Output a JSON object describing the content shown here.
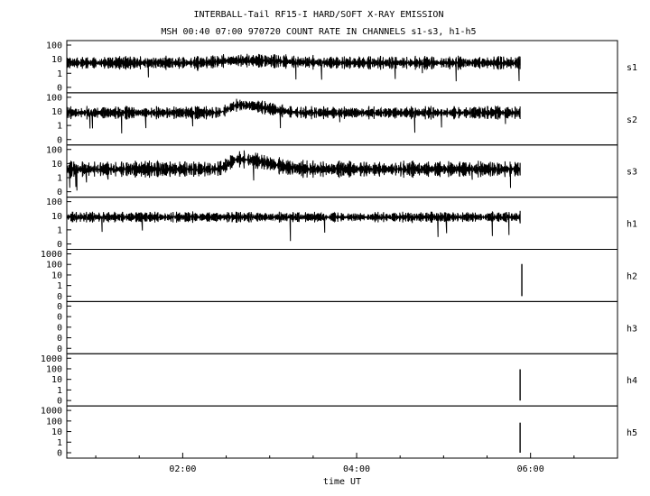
{
  "chart_data": {
    "type": "line",
    "title": "INTERBALL-Tail RF15-I HARD/SOFT X-RAY EMISSION",
    "subtitle": "MSH 00:40 07:00 970720  COUNT RATE IN CHANNELS s1-s3, h1-h5",
    "xlabel": "time UT",
    "x_ticks": [
      "02:00",
      "04:00",
      "06:00"
    ],
    "x_range_hours": [
      0.667,
      7.0
    ],
    "data_end_hour": 5.88,
    "y_scale": "log",
    "panels": [
      {
        "channel": "s1",
        "y_ticks": [
          "100",
          "10",
          "1",
          "0"
        ],
        "baseline": 5.5,
        "noise": 0.12,
        "events": [
          {
            "type": "hump",
            "center_hour": 2.6,
            "width": 0.5,
            "peak": 8
          }
        ]
      },
      {
        "channel": "s2",
        "y_ticks": [
          "100",
          "10",
          "1",
          "0"
        ],
        "baseline": 8,
        "noise": 0.12,
        "events": [
          {
            "type": "hump",
            "center_hour": 2.65,
            "width": 0.25,
            "peak": 28
          }
        ]
      },
      {
        "channel": "s3",
        "y_ticks": [
          "100",
          "10",
          "1",
          "0"
        ],
        "baseline": 4,
        "noise": 0.15,
        "events": [
          {
            "type": "hump",
            "center_hour": 2.65,
            "width": 0.25,
            "peak": 20
          }
        ]
      },
      {
        "channel": "h1",
        "y_ticks": [
          "100",
          "10",
          "1",
          "0"
        ],
        "baseline": 8,
        "noise": 0.1,
        "events": []
      },
      {
        "channel": "h2",
        "y_ticks": [
          "1000",
          "100",
          "10",
          "1",
          "0"
        ],
        "baseline": 0,
        "noise": 0,
        "events": [
          {
            "type": "spike",
            "hour": 5.9,
            "peak": 110
          }
        ]
      },
      {
        "channel": "h3",
        "y_ticks": [
          "0",
          "0",
          "0",
          "0",
          "0"
        ],
        "baseline": 0,
        "noise": 0,
        "events": []
      },
      {
        "channel": "h4",
        "y_ticks": [
          "1000",
          "100",
          "10",
          "1",
          "0"
        ],
        "baseline": 0,
        "noise": 0,
        "events": [
          {
            "type": "spike",
            "hour": 5.88,
            "peak": 90
          }
        ]
      },
      {
        "channel": "h5",
        "y_ticks": [
          "1000",
          "100",
          "10",
          "1",
          "0"
        ],
        "baseline": 0,
        "noise": 0,
        "events": [
          {
            "type": "spike",
            "hour": 5.88,
            "peak": 70
          }
        ]
      }
    ],
    "grid": false,
    "legend": "none"
  }
}
